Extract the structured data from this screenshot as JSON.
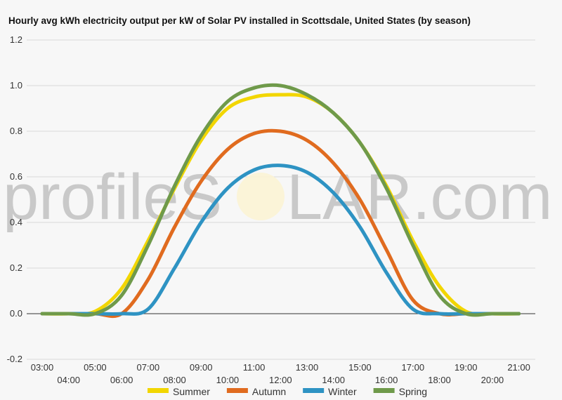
{
  "chart_data": {
    "type": "line",
    "title": "Hourly avg kWh electricity output per kW of Solar PV installed in Scottsdale, United States (by season)",
    "watermark": {
      "left": "profileS",
      "right": "LAR.com"
    },
    "ylim": [
      -0.2,
      1.2
    ],
    "yticks": [
      -0.2,
      0.0,
      0.2,
      0.4,
      0.6,
      0.8,
      1.0,
      1.2
    ],
    "ytick_labels": [
      "-0.2",
      "0.0",
      "0.2",
      "0.4",
      "0.6",
      "0.8",
      "1.0",
      "1.2"
    ],
    "x": [
      "03:00",
      "04:00",
      "05:00",
      "06:00",
      "07:00",
      "08:00",
      "09:00",
      "10:00",
      "11:00",
      "12:00",
      "13:00",
      "14:00",
      "15:00",
      "16:00",
      "17:00",
      "18:00",
      "19:00",
      "20:00",
      "21:00"
    ],
    "series": [
      {
        "name": "Summer",
        "color": "#f2d600",
        "values": [
          0,
          0,
          0.01,
          0.11,
          0.32,
          0.55,
          0.76,
          0.9,
          0.95,
          0.96,
          0.95,
          0.88,
          0.75,
          0.56,
          0.32,
          0.12,
          0.01,
          0,
          0
        ]
      },
      {
        "name": "Autumn",
        "color": "#e06b1f",
        "values": [
          0,
          0,
          0,
          0,
          0.15,
          0.38,
          0.58,
          0.72,
          0.79,
          0.8,
          0.76,
          0.66,
          0.5,
          0.28,
          0.06,
          0,
          0,
          0,
          0
        ]
      },
      {
        "name": "Winter",
        "color": "#2e93c3",
        "values": [
          0,
          0,
          0,
          0,
          0.02,
          0.2,
          0.4,
          0.55,
          0.63,
          0.65,
          0.62,
          0.53,
          0.38,
          0.18,
          0.02,
          0,
          0,
          0,
          0
        ]
      },
      {
        "name": "Spring",
        "color": "#6f9a4a",
        "values": [
          0,
          0,
          0,
          0.08,
          0.3,
          0.56,
          0.78,
          0.93,
          0.99,
          1.0,
          0.96,
          0.88,
          0.75,
          0.55,
          0.3,
          0.08,
          0,
          0,
          0
        ]
      }
    ],
    "grid": true,
    "legend": "bottom"
  }
}
